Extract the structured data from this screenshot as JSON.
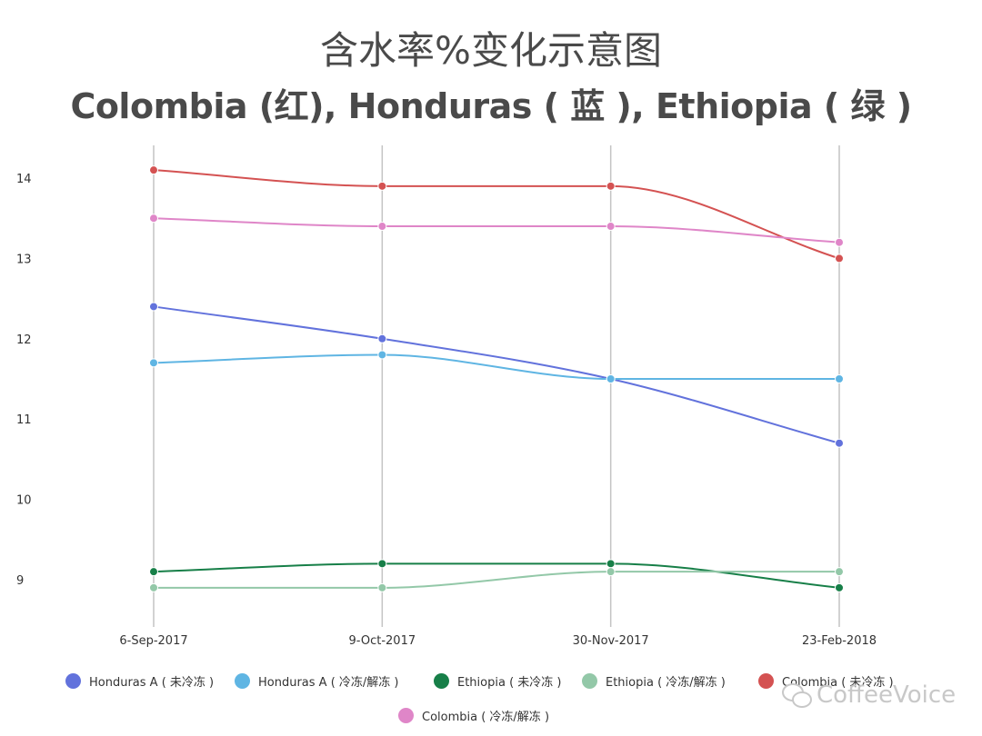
{
  "chart_data": {
    "type": "line",
    "title": "含水率%变化示意图",
    "subtitle": "Colombia (红), Honduras ( 蓝 ), Ethiopia (  绿  )",
    "categories": [
      "6-Sep-2017",
      "9-Oct-2017",
      "30-Nov-2017",
      "23-Feb-2018"
    ],
    "ylim": [
      8.4,
      14.5
    ],
    "yticks": [
      9,
      10,
      11,
      12,
      13,
      14
    ],
    "grid": "vertical",
    "legend_position": "bottom",
    "series": [
      {
        "name": "Honduras A ( 未冷冻 )",
        "color": "#6272dc",
        "values": [
          12.4,
          12.0,
          11.5,
          10.7
        ]
      },
      {
        "name": "Honduras A (   冷冻/解冻  )",
        "color": "#5fb5e3",
        "values": [
          11.7,
          11.8,
          11.5,
          11.5
        ]
      },
      {
        "name": "Ethiopia (  未冷冻  )",
        "color": "#177f48",
        "values": [
          9.1,
          9.2,
          9.2,
          8.9
        ]
      },
      {
        "name": "Ethiopia (    冷冻/解冻   )",
        "color": "#93c8a8",
        "values": [
          8.9,
          8.9,
          9.1,
          9.1
        ]
      },
      {
        "name": "Colombia (  未冷冻  )",
        "color": "#d45252",
        "values": [
          14.1,
          13.9,
          13.9,
          13.0
        ]
      },
      {
        "name": "Colombia (   冷冻/解冻   )",
        "color": "#df86c8",
        "values": [
          13.5,
          13.4,
          13.4,
          13.2
        ]
      }
    ]
  },
  "watermark": "CoffeeVoice"
}
